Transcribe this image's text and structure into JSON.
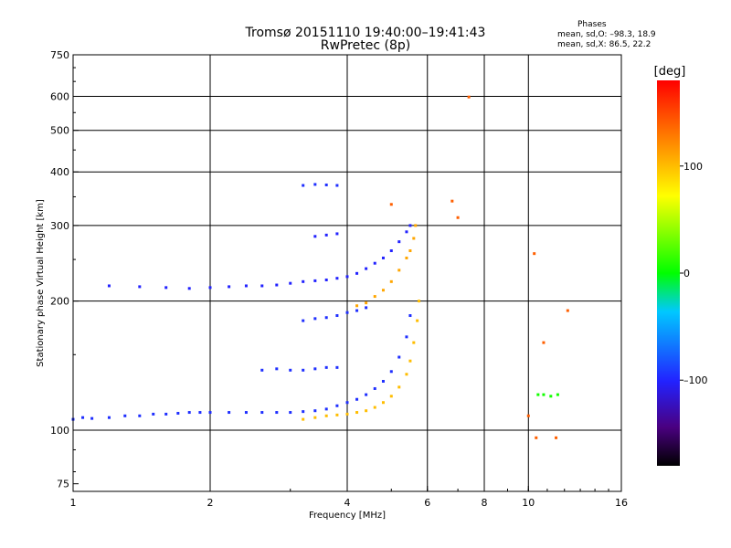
{
  "chart_data": {
    "type": "scatter",
    "title": "Tromsø 20151110 19:40:00–19:41:43",
    "subtitle": "RwPretec (8p)",
    "xlabel": "Frequency [MHz]",
    "ylabel": "Stationary phase Virtual Height [km]",
    "xscale": "log",
    "yscale": "log",
    "xlim": [
      1,
      16
    ],
    "ylim": [
      72,
      750
    ],
    "x_ticks": [
      1,
      2,
      4,
      6,
      8,
      10,
      16
    ],
    "x_tick_labels": [
      "1",
      "2",
      "4",
      "6",
      "8",
      "10",
      "16"
    ],
    "x_grid": [
      2,
      4,
      6,
      8,
      10
    ],
    "y_ticks": [
      75,
      100,
      200,
      300,
      400,
      500,
      600,
      750
    ],
    "y_tick_labels": [
      "75",
      "100",
      "200",
      "300",
      "400",
      "500",
      "600",
      "750"
    ],
    "y_grid": [
      100,
      200,
      300,
      400,
      500,
      600
    ],
    "grid": true,
    "info": {
      "header": "Phases",
      "line_o": "mean, sd,O: –98.3, 18.9",
      "line_x": "mean, sd,X:  86.5, 22.2"
    },
    "colorbar": {
      "unit": "[deg]",
      "range": [
        -180,
        180
      ],
      "ticks": [
        100,
        0,
        -100
      ],
      "tick_labels": [
        "100",
        "0",
        "–100"
      ]
    },
    "series": [
      {
        "trace": "o_trace_low",
        "points": [
          [
            1.0,
            106
          ],
          [
            1.05,
            107
          ],
          [
            1.1,
            106.5
          ],
          [
            1.2,
            107
          ],
          [
            1.3,
            108
          ],
          [
            1.4,
            108
          ],
          [
            1.5,
            109
          ],
          [
            1.6,
            109
          ],
          [
            1.7,
            109.5
          ],
          [
            1.8,
            110
          ],
          [
            1.9,
            110
          ],
          [
            2.0,
            110
          ],
          [
            2.2,
            110
          ],
          [
            2.4,
            110
          ],
          [
            2.6,
            110
          ],
          [
            2.8,
            110
          ],
          [
            3.0,
            110
          ],
          [
            3.2,
            110.5
          ],
          [
            3.4,
            111
          ],
          [
            3.6,
            112
          ],
          [
            3.8,
            114
          ],
          [
            4.0,
            116
          ],
          [
            4.2,
            118
          ],
          [
            4.4,
            121
          ],
          [
            4.6,
            125
          ],
          [
            4.8,
            130
          ],
          [
            5.0,
            137
          ],
          [
            5.2,
            148
          ],
          [
            5.4,
            165
          ],
          [
            5.5,
            185
          ]
        ],
        "phase": -95
      },
      {
        "trace": "x_trace_low",
        "points": [
          [
            3.2,
            106
          ],
          [
            3.4,
            107
          ],
          [
            3.6,
            108
          ],
          [
            3.8,
            108.5
          ],
          [
            4.0,
            109
          ],
          [
            4.2,
            110
          ],
          [
            4.4,
            111
          ],
          [
            4.6,
            113
          ],
          [
            4.8,
            116
          ],
          [
            5.0,
            120
          ],
          [
            5.2,
            126
          ],
          [
            5.4,
            135
          ],
          [
            5.5,
            145
          ],
          [
            5.6,
            160
          ],
          [
            5.7,
            180
          ],
          [
            5.75,
            200
          ]
        ],
        "phase": 100
      },
      {
        "trace": "upper_layer_o",
        "points": [
          [
            1.2,
            217
          ],
          [
            1.4,
            216
          ],
          [
            1.6,
            215
          ],
          [
            1.8,
            214
          ],
          [
            2.0,
            215
          ],
          [
            2.2,
            216
          ],
          [
            2.4,
            217
          ],
          [
            2.6,
            217
          ],
          [
            2.8,
            218
          ],
          [
            3.0,
            220
          ],
          [
            3.2,
            222
          ],
          [
            3.4,
            223
          ],
          [
            3.6,
            224
          ],
          [
            3.8,
            226
          ],
          [
            4.0,
            228
          ],
          [
            4.2,
            232
          ],
          [
            4.4,
            238
          ],
          [
            4.6,
            245
          ],
          [
            4.8,
            252
          ],
          [
            5.0,
            262
          ],
          [
            5.2,
            275
          ],
          [
            5.4,
            290
          ],
          [
            5.5,
            300
          ]
        ],
        "phase": -100
      },
      {
        "trace": "upper_layer_x",
        "points": [
          [
            4.2,
            195
          ],
          [
            4.4,
            198
          ],
          [
            4.6,
            205
          ],
          [
            4.8,
            212
          ],
          [
            5.0,
            222
          ],
          [
            5.2,
            236
          ],
          [
            5.4,
            252
          ],
          [
            5.5,
            262
          ],
          [
            5.6,
            280
          ],
          [
            5.65,
            300
          ]
        ],
        "phase": 110
      },
      {
        "trace": "multihop_370",
        "points": [
          [
            3.2,
            372
          ],
          [
            3.4,
            374
          ],
          [
            3.6,
            373
          ],
          [
            3.8,
            372
          ]
        ],
        "phase": -95
      },
      {
        "trace": "multihop_280",
        "points": [
          [
            3.4,
            283
          ],
          [
            3.6,
            285
          ],
          [
            3.8,
            287
          ]
        ],
        "phase": -100
      },
      {
        "trace": "multihop_138",
        "points": [
          [
            2.6,
            138
          ],
          [
            2.8,
            139
          ],
          [
            3.0,
            138
          ],
          [
            3.2,
            138
          ],
          [
            3.4,
            139
          ],
          [
            3.6,
            140
          ],
          [
            3.8,
            140
          ]
        ],
        "phase": -95
      },
      {
        "trace": "multihop_180",
        "points": [
          [
            3.2,
            180
          ],
          [
            3.4,
            182
          ],
          [
            3.6,
            183
          ],
          [
            3.8,
            185
          ],
          [
            4.0,
            188
          ],
          [
            4.2,
            190
          ],
          [
            4.4,
            193
          ]
        ],
        "phase": -95
      },
      {
        "trace": "right_cluster",
        "points": [
          [
            10.5,
            121
          ],
          [
            10.8,
            121
          ],
          [
            11.2,
            120
          ],
          [
            11.6,
            121
          ]
        ],
        "phase": 5
      },
      {
        "trace": "scatter_high",
        "points": [
          [
            7.4,
            598
          ],
          [
            6.8,
            342
          ],
          [
            7.0,
            313
          ],
          [
            10.3,
            258
          ],
          [
            12.2,
            190
          ],
          [
            10.8,
            160
          ],
          [
            10.4,
            96
          ],
          [
            10.0,
            108
          ],
          [
            11.5,
            96
          ],
          [
            5.0,
            336
          ]
        ],
        "phase": 140
      }
    ]
  }
}
